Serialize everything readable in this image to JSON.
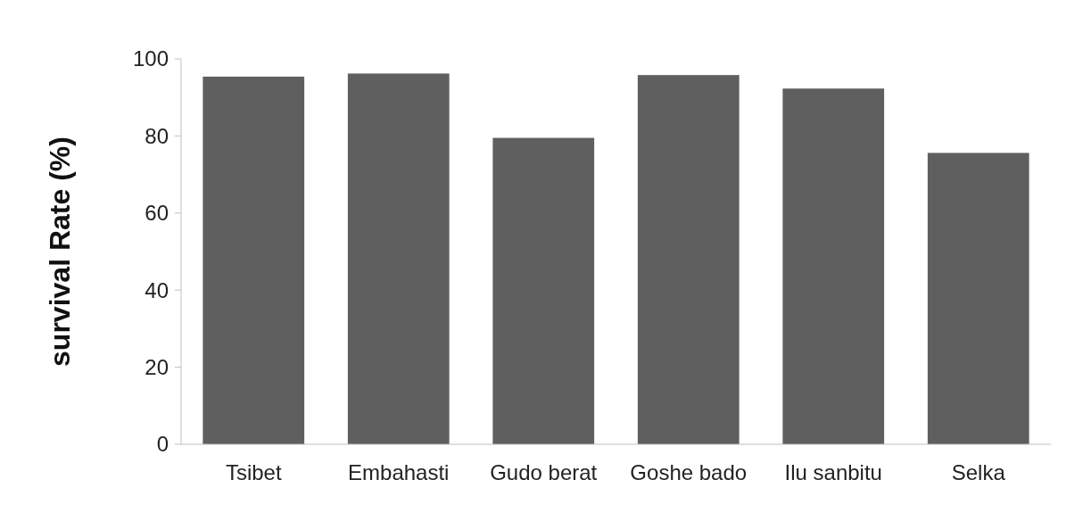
{
  "chart_data": {
    "type": "bar",
    "ylabel": "survival Rate (%)",
    "categories": [
      "Tsibet",
      "Embahasti",
      "Gudo berat",
      "Goshe bado",
      "Ilu sanbitu",
      "Selka"
    ],
    "values": [
      95.4,
      96.2,
      79.5,
      95.8,
      92.3,
      75.6
    ],
    "color": "#5f5f5f",
    "ylim": [
      0,
      100
    ],
    "yticks": [
      0,
      20,
      40,
      60,
      80,
      100
    ],
    "grid": false
  }
}
